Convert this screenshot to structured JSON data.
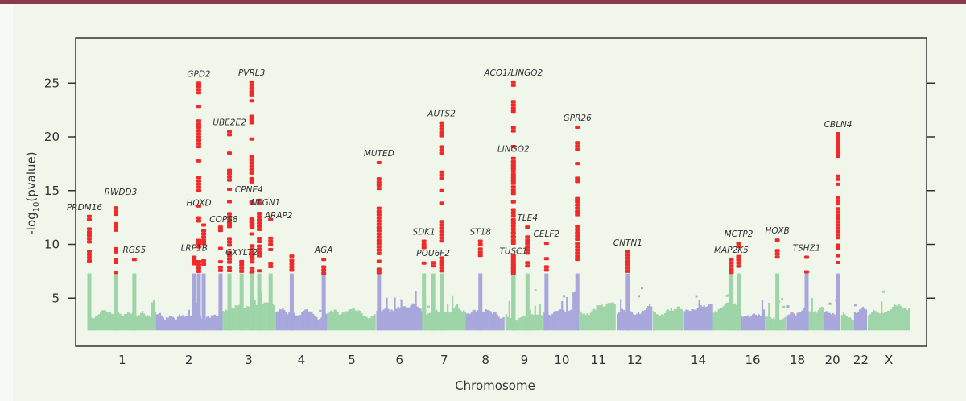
{
  "chart_data": {
    "type": "scatter",
    "subtype": "manhattan",
    "title": "",
    "xlabel": "Chromosome",
    "ylabel": "-log10(pvalue)",
    "ylabel_parts": {
      "pre": "-log",
      "sub": "10",
      "post": "(pvalue)"
    },
    "ylim": [
      0.4,
      29
    ],
    "yticks": [
      5,
      10,
      15,
      20,
      25
    ],
    "grid": false,
    "legend": "none",
    "significance_threshold": 7.3,
    "colors": {
      "odd_chromosome": "#9dd4a8",
      "even_chromosome": "#a8a7dc",
      "significant": "#ee2a2a",
      "axis": "#333333",
      "background": "#f0f6ea"
    },
    "chromosomes": [
      {
        "id": "1",
        "label": "1"
      },
      {
        "id": "2",
        "label": "2"
      },
      {
        "id": "3",
        "label": "3"
      },
      {
        "id": "4",
        "label": "4"
      },
      {
        "id": "5",
        "label": "5"
      },
      {
        "id": "6",
        "label": "6"
      },
      {
        "id": "7",
        "label": "7"
      },
      {
        "id": "8",
        "label": "8"
      },
      {
        "id": "9",
        "label": "9"
      },
      {
        "id": "10",
        "label": "10"
      },
      {
        "id": "11",
        "label": "11"
      },
      {
        "id": "12",
        "label": "12"
      },
      {
        "id": "13",
        "label": ""
      },
      {
        "id": "14",
        "label": "14"
      },
      {
        "id": "15",
        "label": ""
      },
      {
        "id": "16",
        "label": "16"
      },
      {
        "id": "17",
        "label": ""
      },
      {
        "id": "18",
        "label": "18"
      },
      {
        "id": "19",
        "label": ""
      },
      {
        "id": "20",
        "label": "20"
      },
      {
        "id": "21",
        "label": ""
      },
      {
        "id": "22",
        "label": "22"
      },
      {
        "id": "X",
        "label": "X"
      }
    ],
    "peaks": [
      {
        "gene": "PRDM16",
        "chr": "1",
        "pos_mb": 3,
        "top": 12.6
      },
      {
        "gene": "RWDD3",
        "chr": "1",
        "pos_mb": 101,
        "top": 13.4
      },
      {
        "gene": "RGS5",
        "chr": "1",
        "pos_mb": 169,
        "top": 8.6
      },
      {
        "gene": "LRP1B",
        "chr": "2",
        "pos_mb": 141,
        "top": 8.8
      },
      {
        "gene": "GPD2",
        "chr": "2",
        "pos_mb": 158,
        "top": 25.0
      },
      {
        "gene": "HOXD",
        "chr": "2",
        "pos_mb": 176,
        "top": 11.8
      },
      {
        "gene": "COPS8",
        "chr": "2",
        "pos_mb": 238,
        "top": 11.6
      },
      {
        "gene": "UBE2E2",
        "chr": "3",
        "pos_mb": 28,
        "top": 20.5
      },
      {
        "gene": "GXYLT2",
        "chr": "3",
        "pos_mb": 73,
        "top": 8.4
      },
      {
        "gene": "PVRL3",
        "chr": "3",
        "pos_mb": 110,
        "top": 25.1
      },
      {
        "gene": "CPNE4",
        "chr": "3",
        "pos_mb": 112,
        "top": 13.8
      },
      {
        "gene": "NLGN1",
        "chr": "3",
        "pos_mb": 138,
        "top": 14.1
      },
      {
        "gene": "ARAP2",
        "chr": "3",
        "pos_mb": 180,
        "top": 12.3
      },
      {
        "gene": "",
        "chr": "4",
        "pos_mb": 60,
        "top": 8.9
      },
      {
        "gene": "AGA",
        "chr": "4",
        "pos_mb": 178,
        "top": 8.6
      },
      {
        "gene": "MUTED",
        "chr": "6",
        "pos_mb": 10,
        "top": 17.6
      },
      {
        "gene": "SDK1",
        "chr": "7",
        "pos_mb": 5,
        "top": 10.3
      },
      {
        "gene": "POU6F2",
        "chr": "7",
        "pos_mb": 39,
        "top": 8.3
      },
      {
        "gene": "AUTS2",
        "chr": "7",
        "pos_mb": 70,
        "top": 21.3
      },
      {
        "gene": "ST18",
        "chr": "8",
        "pos_mb": 54,
        "top": 10.3
      },
      {
        "gene": "ACO1/LINGO2",
        "chr": "9",
        "pos_mb": 30,
        "top": 25.1
      },
      {
        "gene": "LINGO2",
        "chr": "9",
        "pos_mb": 30,
        "top": 18.0
      },
      {
        "gene": "TUSC1",
        "chr": "9",
        "pos_mb": 30,
        "top": 8.5
      },
      {
        "gene": "TLE4",
        "chr": "9",
        "pos_mb": 82,
        "top": 11.6
      },
      {
        "gene": "CELF2",
        "chr": "10",
        "pos_mb": 11,
        "top": 10.1
      },
      {
        "gene": "GPR26",
        "chr": "10",
        "pos_mb": 125,
        "top": 20.9
      },
      {
        "gene": "CNTN1",
        "chr": "12",
        "pos_mb": 41,
        "top": 9.3
      },
      {
        "gene": "MAP2K5",
        "chr": "15",
        "pos_mb": 68,
        "top": 8.6
      },
      {
        "gene": "MCTP2",
        "chr": "15",
        "pos_mb": 95,
        "top": 10.1
      },
      {
        "gene": "HOXB",
        "chr": "17",
        "pos_mb": 46,
        "top": 10.4
      },
      {
        "gene": "TSHZ1",
        "chr": "18",
        "pos_mb": 73,
        "top": 8.8
      },
      {
        "gene": "CBLN4",
        "chr": "20",
        "pos_mb": 52,
        "top": 20.3
      }
    ]
  }
}
